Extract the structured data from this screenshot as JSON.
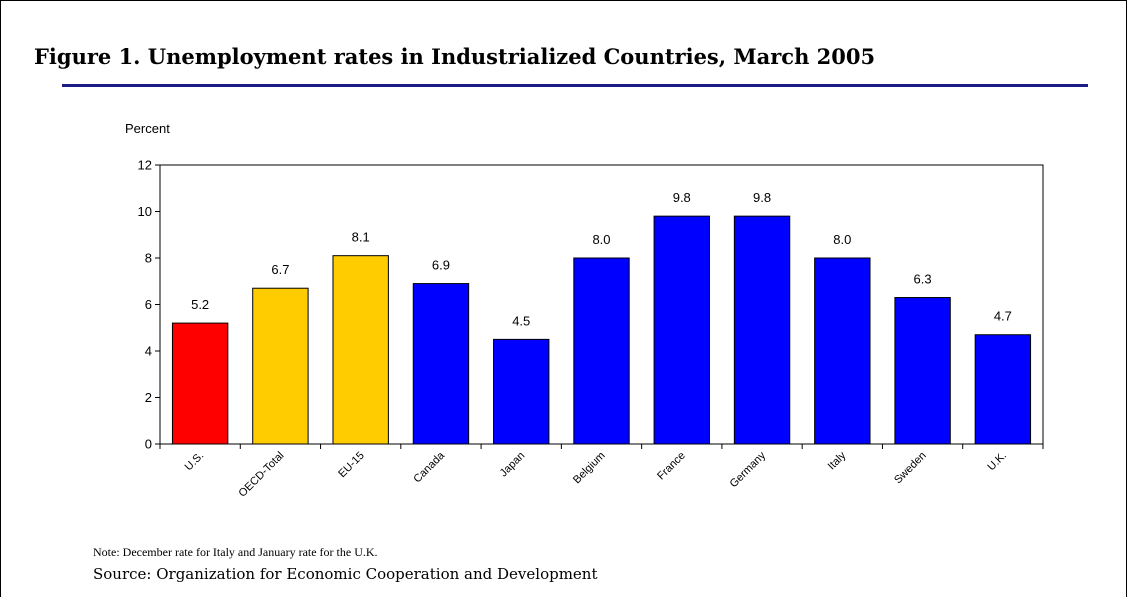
{
  "title": "Figure 1.  Unemployment rates in Industrialized Countries, March 2005",
  "note": "Note:  December rate for Italy and January rate for the U.K.",
  "source": "Source:  Organization for Economic Cooperation and Development",
  "colors": {
    "us": "#ff0000",
    "aggregate": "#ffcc00",
    "country": "#0000ff",
    "rule": "#1c1c88"
  },
  "chart_data": {
    "type": "bar",
    "ylabel": "Percent",
    "xlabel": "",
    "ylim": [
      0,
      12
    ],
    "yticks": [
      0,
      2,
      4,
      6,
      8,
      10,
      12
    ],
    "grid": false,
    "categories": [
      "U.S.",
      "OECD-Total",
      "EU-15",
      "Canada",
      "Japan",
      "Belgium",
      "France",
      "Germany",
      "Italy",
      "Sweden",
      "U.K."
    ],
    "values": [
      5.2,
      6.7,
      8.1,
      6.9,
      4.5,
      8.0,
      9.8,
      9.8,
      8.0,
      6.3,
      4.7
    ],
    "value_labels": [
      "5.2",
      "6.7",
      "8.1",
      "6.9",
      "4.5",
      "8.0",
      "9.8",
      "9.8",
      "8.0",
      "6.3",
      "4.7"
    ],
    "bar_colors": [
      "#ff0000",
      "#ffcc00",
      "#ffcc00",
      "#0000ff",
      "#0000ff",
      "#0000ff",
      "#0000ff",
      "#0000ff",
      "#0000ff",
      "#0000ff",
      "#0000ff"
    ]
  }
}
